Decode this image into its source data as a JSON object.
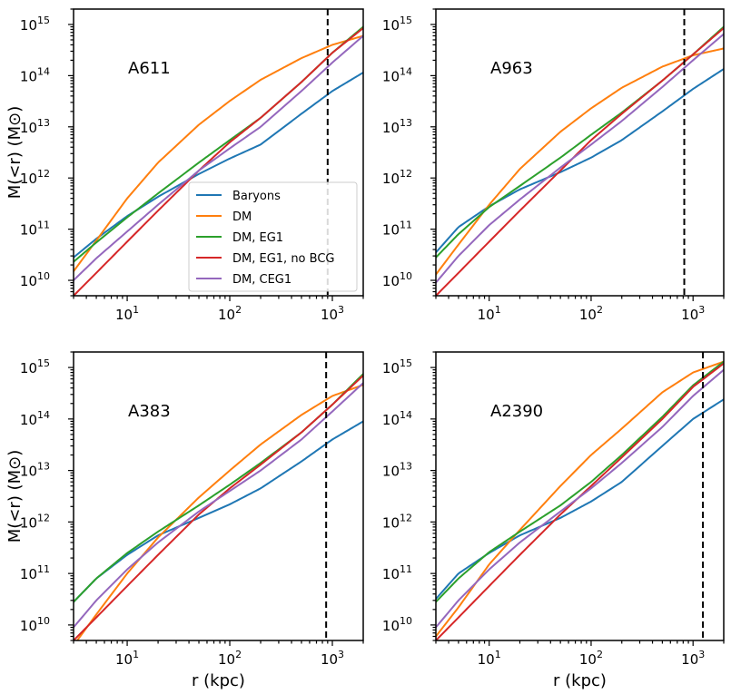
{
  "chart_data": [
    {
      "type": "line",
      "panel": "A611",
      "title": "A611",
      "xlabel": "",
      "ylabel": "M(<r) (M⊙)",
      "xscale": "log",
      "yscale": "log",
      "xlim": [
        3,
        2000
      ],
      "ylim": [
        5000000000.0,
        2000000000000000.0
      ],
      "xticks": [
        10,
        100,
        1000
      ],
      "yticks": [
        10000000000.0,
        100000000000.0,
        1000000000000.0,
        10000000000000.0,
        100000000000000.0,
        1000000000000000.0
      ],
      "vline": 900,
      "legend_location": "center-right",
      "series": [
        {
          "name": "Baryons",
          "x": [
            3,
            5,
            10,
            20,
            50,
            100,
            200,
            500,
            1000,
            2000
          ],
          "y": [
            28000000000.0,
            65000000000.0,
            180000000000.0,
            430000000000.0,
            1200000000000.0,
            2400000000000.0,
            4500000000000.0,
            18000000000000.0,
            50000000000000.0,
            115000000000000.0
          ]
        },
        {
          "name": "DM",
          "x": [
            3,
            5,
            10,
            20,
            50,
            100,
            200,
            500,
            1000,
            2000
          ],
          "y": [
            15000000000.0,
            60000000000.0,
            400000000000.0,
            2000000000000.0,
            11000000000000.0,
            32000000000000.0,
            83000000000000.0,
            220000000000000.0,
            400000000000000.0,
            600000000000000.0
          ]
        },
        {
          "name": "DM, EG1",
          "x": [
            3,
            5,
            10,
            20,
            50,
            100,
            200,
            500,
            1000,
            2000
          ],
          "y": [
            23000000000.0,
            55000000000.0,
            170000000000.0,
            500000000000.0,
            2000000000000.0,
            5500000000000.0,
            15000000000000.0,
            75000000000000.0,
            280000000000000.0,
            900000000000000.0
          ]
        },
        {
          "name": "DM, EG1, no BCG",
          "x": [
            3,
            5,
            10,
            20,
            50,
            100,
            200,
            500,
            1000,
            2000
          ],
          "y": [
            5000000000.0,
            14000000000.0,
            57000000000.0,
            230000000000.0,
            1400000000000.0,
            5000000000000.0,
            15000000000000.0,
            75000000000000.0,
            280000000000000.0,
            850000000000000.0
          ]
        },
        {
          "name": "DM, CEG1",
          "x": [
            3,
            5,
            10,
            20,
            50,
            100,
            200,
            500,
            1000,
            2000
          ],
          "y": [
            10000000000.0,
            27000000000.0,
            90000000000.0,
            300000000000.0,
            1400000000000.0,
            3800000000000.0,
            10000000000000.0,
            50000000000000.0,
            180000000000000.0,
            600000000000000.0
          ]
        }
      ]
    },
    {
      "type": "line",
      "panel": "A963",
      "title": "A963",
      "xlabel": "",
      "ylabel": "",
      "xscale": "log",
      "yscale": "log",
      "xlim": [
        3,
        2000
      ],
      "ylim": [
        5000000000.0,
        2000000000000000.0
      ],
      "xticks": [
        10,
        100,
        1000
      ],
      "yticks": [
        10000000000.0,
        100000000000.0,
        1000000000000.0,
        10000000000000.0,
        100000000000000.0,
        1000000000000000.0
      ],
      "vline": 820,
      "series": [
        {
          "name": "Baryons",
          "x": [
            3,
            5,
            10,
            20,
            50,
            100,
            200,
            500,
            1000,
            2000
          ],
          "y": [
            35000000000.0,
            110000000000.0,
            280000000000.0,
            600000000000.0,
            1300000000000.0,
            2500000000000.0,
            5500000000000.0,
            20000000000000.0,
            55000000000000.0,
            135000000000000.0
          ]
        },
        {
          "name": "DM",
          "x": [
            3,
            5,
            10,
            20,
            50,
            100,
            200,
            500,
            1000,
            2000
          ],
          "y": [
            13000000000.0,
            50000000000.0,
            300000000000.0,
            1500000000000.0,
            8000000000000.0,
            23000000000000.0,
            58000000000000.0,
            150000000000000.0,
            250000000000000.0,
            340000000000000.0
          ]
        },
        {
          "name": "DM, EG1",
          "x": [
            3,
            5,
            10,
            20,
            50,
            100,
            200,
            500,
            1000,
            2000
          ],
          "y": [
            28000000000.0,
            80000000000.0,
            270000000000.0,
            700000000000.0,
            2500000000000.0,
            7000000000000.0,
            19000000000000.0,
            80000000000000.0,
            260000000000000.0,
            900000000000000.0
          ]
        },
        {
          "name": "DM, EG1, no BCG",
          "x": [
            3,
            5,
            10,
            20,
            50,
            100,
            200,
            500,
            1000,
            2000
          ],
          "y": [
            5000000000.0,
            14000000000.0,
            57000000000.0,
            230000000000.0,
            1400000000000.0,
            5500000000000.0,
            18000000000000.0,
            80000000000000.0,
            260000000000000.0,
            850000000000000.0
          ]
        },
        {
          "name": "DM, CEG1",
          "x": [
            3,
            5,
            10,
            20,
            50,
            100,
            200,
            500,
            1000,
            2000
          ],
          "y": [
            9000000000.0,
            30000000000.0,
            120000000000.0,
            380000000000.0,
            1600000000000.0,
            4500000000000.0,
            13000000000000.0,
            60000000000000.0,
            200000000000000.0,
            650000000000000.0
          ]
        }
      ]
    },
    {
      "type": "line",
      "panel": "A383",
      "title": "A383",
      "xlabel": "r (kpc)",
      "ylabel": "M(<r) (M⊙)",
      "xscale": "log",
      "yscale": "log",
      "xlim": [
        3,
        2000
      ],
      "ylim": [
        5000000000.0,
        2000000000000000.0
      ],
      "xticks": [
        10,
        100,
        1000
      ],
      "yticks": [
        10000000000.0,
        100000000000.0,
        1000000000000.0,
        10000000000000.0,
        100000000000000.0,
        1000000000000000.0
      ],
      "vline": 870,
      "series": [
        {
          "name": "Baryons",
          "x": [
            3,
            5,
            10,
            20,
            50,
            100,
            200,
            500,
            1000,
            2000
          ],
          "y": [
            28000000000.0,
            80000000000.0,
            230000000000.0,
            550000000000.0,
            1200000000000.0,
            2200000000000.0,
            4500000000000.0,
            15000000000000.0,
            40000000000000.0,
            90000000000000.0
          ]
        },
        {
          "name": "DM",
          "x": [
            3,
            5,
            10,
            20,
            50,
            100,
            200,
            500,
            1000,
            2000
          ],
          "y": [
            4000000000.0,
            16000000000.0,
            100000000000.0,
            500000000000.0,
            3000000000000.0,
            10000000000000.0,
            32000000000000.0,
            120000000000000.0,
            280000000000000.0,
            460000000000000.0
          ]
        },
        {
          "name": "DM, EG1",
          "x": [
            3,
            5,
            10,
            20,
            50,
            100,
            200,
            500,
            1000,
            2000
          ],
          "y": [
            28000000000.0,
            80000000000.0,
            250000000000.0,
            650000000000.0,
            2100000000000.0,
            5300000000000.0,
            14000000000000.0,
            55000000000000.0,
            190000000000000.0,
            750000000000000.0
          ]
        },
        {
          "name": "DM, EG1, no BCG",
          "x": [
            3,
            5,
            10,
            20,
            50,
            100,
            200,
            500,
            1000,
            2000
          ],
          "y": [
            5000000000.0,
            14000000000.0,
            57000000000.0,
            230000000000.0,
            1400000000000.0,
            4500000000000.0,
            13000000000000.0,
            55000000000000.0,
            190000000000000.0,
            700000000000000.0
          ]
        },
        {
          "name": "DM, CEG1",
          "x": [
            3,
            5,
            10,
            20,
            50,
            100,
            200,
            500,
            1000,
            2000
          ],
          "y": [
            9000000000.0,
            30000000000.0,
            120000000000.0,
            400000000000.0,
            1600000000000.0,
            4000000000000.0,
            10000000000000.0,
            40000000000000.0,
            140000000000000.0,
            500000000000000.0
          ]
        }
      ]
    },
    {
      "type": "line",
      "panel": "A2390",
      "title": "A2390",
      "xlabel": "r (kpc)",
      "ylabel": "",
      "xscale": "log",
      "yscale": "log",
      "xlim": [
        3,
        2000
      ],
      "ylim": [
        5000000000.0,
        2000000000000000.0
      ],
      "xticks": [
        10,
        100,
        1000
      ],
      "yticks": [
        10000000000.0,
        100000000000.0,
        1000000000000.0,
        10000000000000.0,
        100000000000000.0,
        1000000000000000.0
      ],
      "vline": 1250,
      "series": [
        {
          "name": "Baryons",
          "x": [
            3,
            5,
            10,
            20,
            50,
            100,
            200,
            500,
            1000,
            2000
          ],
          "y": [
            32000000000.0,
            100000000000.0,
            250000000000.0,
            550000000000.0,
            1200000000000.0,
            2500000000000.0,
            6000000000000.0,
            30000000000000.0,
            100000000000000.0,
            240000000000000.0
          ]
        },
        {
          "name": "DM",
          "x": [
            3,
            5,
            10,
            20,
            50,
            100,
            200,
            500,
            1000,
            2000
          ],
          "y": [
            6000000000.0,
            22000000000.0,
            150000000000.0,
            700000000000.0,
            5000000000000.0,
            20000000000000.0,
            65000000000000.0,
            330000000000000.0,
            800000000000000.0,
            1300000000000000.0
          ]
        },
        {
          "name": "DM, EG1",
          "x": [
            3,
            5,
            10,
            20,
            50,
            100,
            200,
            500,
            1000,
            2000
          ],
          "y": [
            28000000000.0,
            80000000000.0,
            260000000000.0,
            650000000000.0,
            2100000000000.0,
            6000000000000.0,
            20000000000000.0,
            110000000000000.0,
            450000000000000.0,
            1300000000000000.0
          ]
        },
        {
          "name": "DM, EG1, no BCG",
          "x": [
            3,
            5,
            10,
            20,
            50,
            100,
            200,
            500,
            1000,
            2000
          ],
          "y": [
            5000000000.0,
            14000000000.0,
            57000000000.0,
            230000000000.0,
            1400000000000.0,
            5000000000000.0,
            18000000000000.0,
            100000000000000.0,
            420000000000000.0,
            1200000000000000.0
          ]
        },
        {
          "name": "DM, CEG1",
          "x": [
            3,
            5,
            10,
            20,
            50,
            100,
            200,
            500,
            1000,
            2000
          ],
          "y": [
            9000000000.0,
            30000000000.0,
            120000000000.0,
            400000000000.0,
            1600000000000.0,
            4500000000000.0,
            14000000000000.0,
            70000000000000.0,
            280000000000000.0,
            900000000000000.0
          ]
        }
      ]
    }
  ],
  "legend": {
    "entries": [
      "Baryons",
      "DM",
      "DM, EG1",
      "DM, EG1, no BCG",
      "DM, CEG1"
    ]
  },
  "colors": {
    "Baryons": "#1f77b4",
    "DM": "#ff7f0e",
    "DM, EG1": "#2ca02c",
    "DM, EG1, no BCG": "#d62728",
    "DM, CEG1": "#9467bd"
  }
}
